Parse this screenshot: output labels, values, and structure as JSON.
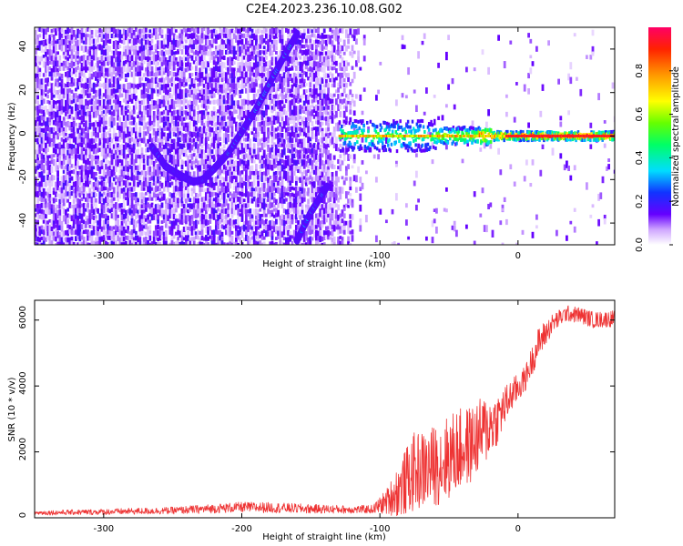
{
  "title": "C2E4.2023.236.10.08.G02",
  "chart_data": [
    {
      "type": "heatmap",
      "xlabel": "Height of straight line (km)",
      "ylabel": "Frequency (Hz)",
      "xlim": [
        -350,
        70
      ],
      "ylim": [
        -50,
        50
      ],
      "x_ticks": [
        -300,
        -200,
        -100,
        0
      ],
      "x_tick_labels": [
        "-300",
        "-200",
        "-100",
        "0"
      ],
      "y_ticks": [
        -40,
        -20,
        0,
        20,
        40
      ],
      "y_tick_labels": [
        "-40",
        "-20",
        "0",
        "20",
        "40"
      ],
      "colorbar": {
        "label": "Normalized spectral amplitude",
        "range": [
          0,
          1
        ],
        "ticks": [
          0.0,
          0.2,
          0.4,
          0.6,
          0.8
        ],
        "tick_labels": [
          "0.0",
          "0.2",
          "0.4",
          "0.6",
          "0.8"
        ]
      },
      "features": [
        {
          "name": "carrier line",
          "x_range": [
            -130,
            70
          ],
          "freq": 0,
          "amplitude": 0.95
        },
        {
          "name": "descending arc",
          "points": [
            [
              -265,
              -5
            ],
            [
              -255,
              -14
            ],
            [
              -245,
              -18
            ],
            [
              -235,
              -21
            ],
            [
              -228,
              -20
            ],
            [
              -220,
              -15
            ],
            [
              -210,
              -8
            ],
            [
              -200,
              2
            ],
            [
              -190,
              12
            ],
            [
              -180,
              24
            ],
            [
              -170,
              36
            ],
            [
              -160,
              47
            ]
          ],
          "amplitude": 0.3
        },
        {
          "name": "lower streak",
          "points": [
            [
              -160,
              -48
            ],
            [
              -150,
              -35
            ],
            [
              -138,
              -23
            ]
          ],
          "amplitude": 0.25
        }
      ]
    },
    {
      "type": "line",
      "xlabel": "Height of straight line (km)",
      "ylabel": "SNR (10 * v/v)",
      "xlim": [
        -350,
        70
      ],
      "ylim": [
        0,
        6600
      ],
      "x_ticks": [
        -300,
        -200,
        -100,
        0
      ],
      "x_tick_labels": [
        "-300",
        "-200",
        "-100",
        "0"
      ],
      "y_ticks": [
        0,
        2000,
        4000,
        6000
      ],
      "y_tick_labels": [
        "0",
        "2000",
        "4000",
        "6000"
      ],
      "series": [
        {
          "name": "SNR",
          "color": "#ee3333",
          "envelope": {
            "x": [
              -350,
              -300,
              -250,
              -200,
              -180,
              -150,
              -120,
              -105,
              -95,
              -85,
              -75,
              -65,
              -55,
              -45,
              -35,
              -25,
              -15,
              -5,
              5,
              15,
              25,
              35,
              45,
              55,
              70
            ],
            "center": [
              150,
              180,
              220,
              320,
              310,
              270,
              250,
              260,
              500,
              900,
              1400,
              1500,
              1700,
              2000,
              2200,
              2600,
              3000,
              3700,
              4200,
              5300,
              5900,
              6200,
              6150,
              6000,
              6050
            ],
            "spread": [
              70,
              90,
              110,
              160,
              160,
              140,
              120,
              130,
              400,
              900,
              1200,
              1200,
              1300,
              1300,
              1200,
              1100,
              800,
              500,
              400,
              500,
              300,
              250,
              250,
              250,
              250
            ]
          }
        }
      ]
    }
  ]
}
